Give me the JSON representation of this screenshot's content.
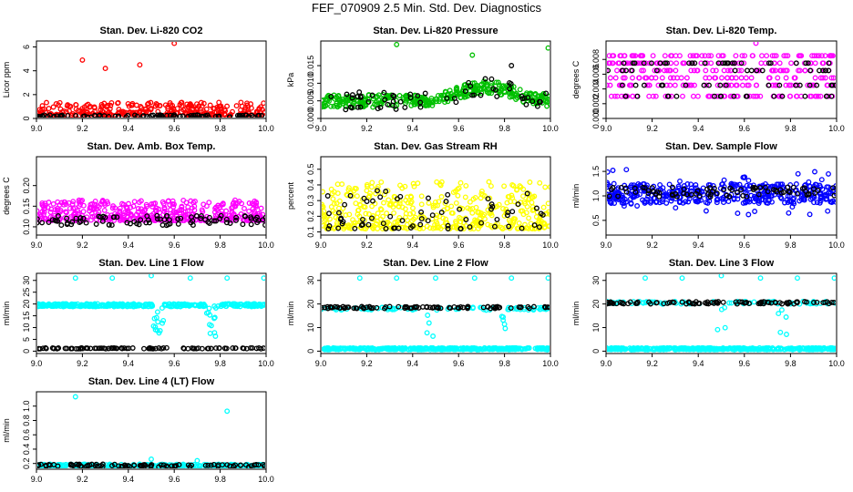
{
  "figure": {
    "title": "FEF_070909  2.5 Min. Std. Dev. Diagnostics"
  },
  "chart_data": [
    {
      "type": "scatter",
      "title": "Stan. Dev. Li-820 CO2",
      "ylabel": "Licor ppm",
      "xlim": [
        9.0,
        10.0
      ],
      "ylim": [
        0,
        6.5
      ],
      "xticks": [
        "9.0",
        "9.2",
        "9.4",
        "9.6",
        "9.8",
        "10.0"
      ],
      "yticks": [
        "0",
        "2",
        "4",
        "6"
      ],
      "series": [
        {
          "name": "colored",
          "color": "#ff0000",
          "n": 300,
          "style": "spread",
          "base": 0.25,
          "spread": 1.1,
          "extras": [
            {
              "x": 9.6,
              "y": 6.3
            },
            {
              "x": 9.2,
              "y": 4.9
            },
            {
              "x": 9.45,
              "y": 4.5
            },
            {
              "x": 9.3,
              "y": 4.2
            }
          ]
        },
        {
          "name": "black",
          "color": "#000000",
          "n": 90,
          "style": "band",
          "base": 0.2,
          "spread": 0.1
        }
      ]
    },
    {
      "type": "scatter",
      "title": "Stan. Dev. Li-820 Pressure",
      "ylabel": "kPa",
      "xlim": [
        9.0,
        10.0
      ],
      "ylim": [
        0,
        0.022
      ],
      "xticks": [
        "9.0",
        "9.2",
        "9.4",
        "9.6",
        "9.8",
        "10.0"
      ],
      "yticks": [
        "0.000",
        "0.005",
        "0.010",
        "0.015"
      ],
      "series": [
        {
          "name": "colored",
          "color": "#00c000",
          "n": 360,
          "style": "hump",
          "base": 0.005,
          "spread": 0.0018,
          "hump": 0.004,
          "extras": [
            {
              "x": 9.33,
              "y": 0.021
            },
            {
              "x": 9.99,
              "y": 0.02
            },
            {
              "x": 9.66,
              "y": 0.018
            }
          ]
        },
        {
          "name": "black",
          "color": "#000000",
          "n": 60,
          "style": "hump",
          "base": 0.005,
          "spread": 0.0025,
          "hump": 0.004,
          "extras": [
            {
              "x": 9.83,
              "y": 0.015
            }
          ]
        }
      ]
    },
    {
      "type": "scatter",
      "title": "Stan. Dev. Li-820 Temp.",
      "ylabel": "degrees C",
      "xlim": [
        9.0,
        10.0
      ],
      "ylim": [
        0,
        0.0105
      ],
      "xticks": [
        "9.0",
        "9.2",
        "9.4",
        "9.6",
        "9.8",
        "10.0"
      ],
      "yticks": [
        "0.000",
        "0.002",
        "0.004",
        "0.006",
        "0.008"
      ],
      "series": [
        {
          "name": "colored",
          "color": "#ff00ff",
          "n": 330,
          "style": "levels",
          "levels": [
            0.0045,
            0.0055,
            0.0065,
            0.0075,
            0.0085,
            0.003
          ],
          "extras": [
            {
              "x": 9.65,
              "y": 0.0102
            }
          ]
        },
        {
          "name": "black",
          "color": "#000000",
          "n": 80,
          "style": "levels",
          "levels": [
            0.003,
            0.0045,
            0.0065,
            0.0075
          ]
        }
      ]
    },
    {
      "type": "scatter",
      "title": "Stan. Dev. Amb. Box Temp.",
      "ylabel": "degrees C",
      "xlim": [
        9.0,
        10.0
      ],
      "ylim": [
        0.08,
        0.27
      ],
      "xticks": [
        "9.0",
        "9.2",
        "9.4",
        "9.6",
        "9.8",
        "10.0"
      ],
      "yticks": [
        "0.10",
        "0.15",
        "0.20"
      ],
      "series": [
        {
          "name": "colored",
          "color": "#ff00ff",
          "n": 420,
          "style": "spread",
          "base": 0.115,
          "spread": 0.05
        },
        {
          "name": "black",
          "color": "#000000",
          "n": 90,
          "style": "band",
          "base": 0.115,
          "spread": 0.012
        }
      ]
    },
    {
      "type": "scatter",
      "title": "Stan. Dev. Gas Stream RH",
      "ylabel": "percent",
      "xlim": [
        9.0,
        10.0
      ],
      "ylim": [
        0.08,
        0.58
      ],
      "xticks": [
        "9.0",
        "9.2",
        "9.4",
        "9.6",
        "9.8",
        "10.0"
      ],
      "yticks": [
        "0.1",
        "0.2",
        "0.3",
        "0.4",
        "0.5"
      ],
      "series": [
        {
          "name": "colored",
          "color": "#ffff00",
          "n": 440,
          "style": "spread",
          "base": 0.12,
          "spread": 0.3
        },
        {
          "name": "black",
          "color": "#000000",
          "n": 70,
          "style": "spread",
          "base": 0.12,
          "spread": 0.25
        }
      ]
    },
    {
      "type": "scatter",
      "title": "Stan. Dev. Sample Flow",
      "ylabel": "ml/min",
      "xlim": [
        9.0,
        10.0
      ],
      "ylim": [
        0.2,
        1.8
      ],
      "xticks": [
        "9.0",
        "9.2",
        "9.4",
        "9.6",
        "9.8",
        "10.0"
      ],
      "yticks": [
        "0.5",
        "1.0",
        "1.5"
      ],
      "series": [
        {
          "name": "colored",
          "color": "#0000ff",
          "n": 420,
          "style": "cloud",
          "base": 1.05,
          "spread": 0.2,
          "outliers": 0.5
        },
        {
          "name": "black",
          "color": "#000000",
          "n": 80,
          "style": "band",
          "base": 1.08,
          "spread": 0.1
        }
      ]
    },
    {
      "type": "scatter",
      "title": "Stan. Dev. Line 1 Flow",
      "ylabel": "ml/min",
      "xlim": [
        9.0,
        10.0
      ],
      "ylim": [
        -1,
        33
      ],
      "xticks": [
        "9.0",
        "9.2",
        "9.4",
        "9.6",
        "9.8",
        "10.0"
      ],
      "yticks": [
        "0",
        "5",
        "10",
        "15",
        "20",
        "25",
        "30"
      ],
      "series": [
        {
          "name": "colored",
          "color": "#00ffff",
          "n": 360,
          "style": "dips",
          "base": 19.5,
          "spread": 0.6,
          "dips": [
            9.53,
            9.76
          ],
          "extras": [
            {
              "x": 9.17,
              "y": 31
            },
            {
              "x": 9.33,
              "y": 31
            },
            {
              "x": 9.5,
              "y": 32
            },
            {
              "x": 9.67,
              "y": 31
            },
            {
              "x": 9.83,
              "y": 31
            },
            {
              "x": 9.99,
              "y": 31
            }
          ]
        },
        {
          "name": "black",
          "color": "#000000",
          "n": 90,
          "style": "band",
          "base": 1.2,
          "spread": 0.2
        }
      ]
    },
    {
      "type": "scatter",
      "title": "Stan. Dev. Line 2 Flow",
      "ylabel": "ml/min",
      "xlim": [
        9.0,
        10.0
      ],
      "ylim": [
        -1,
        33
      ],
      "xticks": [
        "9.0",
        "9.2",
        "9.4",
        "9.6",
        "9.8",
        "10.0"
      ],
      "yticks": [
        "0",
        "10",
        "20",
        "30"
      ],
      "series": [
        {
          "name": "colored",
          "color": "#00ffff",
          "n": 380,
          "style": "band",
          "base": 1.0,
          "spread": 0.4,
          "extras": [
            {
              "x": 9.17,
              "y": 31
            },
            {
              "x": 9.33,
              "y": 31
            },
            {
              "x": 9.5,
              "y": 31
            },
            {
              "x": 9.67,
              "y": 31
            },
            {
              "x": 9.83,
              "y": 31
            },
            {
              "x": 9.99,
              "y": 31
            }
          ]
        },
        {
          "name": "colored-upper",
          "color": "#00ffff",
          "n": 90,
          "style": "dips",
          "base": 18,
          "spread": 0.6,
          "dips": [
            9.48,
            9.78
          ]
        },
        {
          "name": "black",
          "color": "#000000",
          "n": 90,
          "style": "band",
          "base": 18.5,
          "spread": 0.4
        }
      ]
    },
    {
      "type": "scatter",
      "title": "Stan. Dev. Line 3 Flow",
      "ylabel": "ml/min",
      "xlim": [
        9.0,
        10.0
      ],
      "ylim": [
        -1,
        33
      ],
      "xticks": [
        "9.0",
        "9.2",
        "9.4",
        "9.6",
        "9.8",
        "10.0"
      ],
      "yticks": [
        "0",
        "10",
        "20",
        "30"
      ],
      "series": [
        {
          "name": "colored",
          "color": "#00ffff",
          "n": 380,
          "style": "band",
          "base": 1.0,
          "spread": 0.4,
          "extras": [
            {
              "x": 9.17,
              "y": 31
            },
            {
              "x": 9.33,
              "y": 31
            },
            {
              "x": 9.5,
              "y": 32
            },
            {
              "x": 9.67,
              "y": 31
            },
            {
              "x": 9.83,
              "y": 31
            },
            {
              "x": 9.99,
              "y": 31
            }
          ]
        },
        {
          "name": "colored-upper",
          "color": "#00ffff",
          "n": 90,
          "style": "dips",
          "base": 20.5,
          "spread": 0.6,
          "dips": [
            9.5,
            9.77
          ]
        },
        {
          "name": "black",
          "color": "#000000",
          "n": 90,
          "style": "band",
          "base": 20.5,
          "spread": 0.5
        }
      ]
    },
    {
      "type": "scatter",
      "title": "Stan. Dev. Line 4 (LT) Flow",
      "ylabel": "ml/min",
      "xlim": [
        9.0,
        10.0
      ],
      "ylim": [
        0.12,
        1.2
      ],
      "xticks": [
        "9.0",
        "9.2",
        "9.4",
        "9.6",
        "9.8",
        "10.0"
      ],
      "yticks": [
        "0.2",
        "0.4",
        "0.6",
        "0.8",
        "1.0"
      ],
      "series": [
        {
          "name": "colored",
          "color": "#00ffff",
          "n": 300,
          "style": "band",
          "base": 0.17,
          "spread": 0.02,
          "extras": [
            {
              "x": 9.17,
              "y": 1.13
            },
            {
              "x": 9.83,
              "y": 0.93
            },
            {
              "x": 9.5,
              "y": 0.26
            },
            {
              "x": 9.7,
              "y": 0.24
            }
          ]
        },
        {
          "name": "black",
          "color": "#000000",
          "n": 90,
          "style": "band",
          "base": 0.17,
          "spread": 0.02
        }
      ]
    }
  ]
}
